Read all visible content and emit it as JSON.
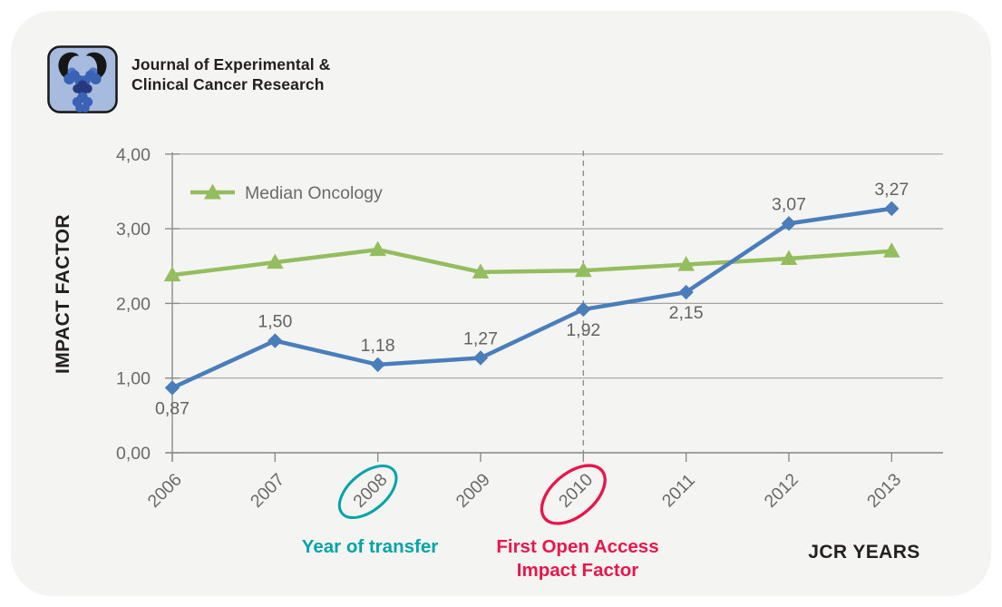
{
  "header": {
    "title_line1": "Journal of Experimental &",
    "title_line2": "Clinical Cancer Research",
    "logo": "antibody-crab-journal-logo"
  },
  "chart_data": {
    "type": "line",
    "xlabel": "JCR YEARS",
    "ylabel": "IMPACT FACTOR",
    "categories": [
      "2006",
      "2007",
      "2008",
      "2009",
      "2010",
      "2011",
      "2012",
      "2013"
    ],
    "ylim": [
      0,
      4
    ],
    "ytick_labels": [
      "0,00",
      "1,00",
      "2,00",
      "3,00",
      "4,00"
    ],
    "grid": "horizontal",
    "legend_position": "top-left-inside",
    "series": [
      {
        "id": "journal-impact-factor",
        "name": "",
        "in_legend": false,
        "color": "#4A7EBB",
        "marker": "diamond",
        "values": [
          0.87,
          1.5,
          1.18,
          1.27,
          1.92,
          2.15,
          3.07,
          3.27
        ],
        "point_labels": [
          "0,87",
          "1,50",
          "1,18",
          "1,27",
          "1,92",
          "2,15",
          "3,07",
          "3,27"
        ],
        "label_positions": [
          "below",
          "above",
          "above",
          "above",
          "below",
          "below",
          "above",
          "above"
        ]
      },
      {
        "id": "median-oncology",
        "name": "Median Oncology",
        "in_legend": true,
        "color": "#94BD5E",
        "marker": "triangle",
        "values": [
          2.38,
          2.55,
          2.72,
          2.42,
          2.44,
          2.52,
          2.6,
          2.7
        ],
        "point_labels": [],
        "label_positions": []
      }
    ],
    "annotations": {
      "dashed_vline_category": "2010",
      "circled_categories": [
        {
          "category": "2008",
          "color": "#00A3A8",
          "label": "Year of transfer"
        },
        {
          "category": "2010",
          "color": "#E8174B",
          "label_line1": "First Open Access",
          "label_line2": "Impact Factor"
        }
      ]
    },
    "colors": {
      "card_background": "#F4F4F3",
      "gridline": "#A3A3A3",
      "axis": "#8C8C8C",
      "tick_text": "#6A6A6A",
      "dashed_line": "#8F8F8F"
    }
  }
}
